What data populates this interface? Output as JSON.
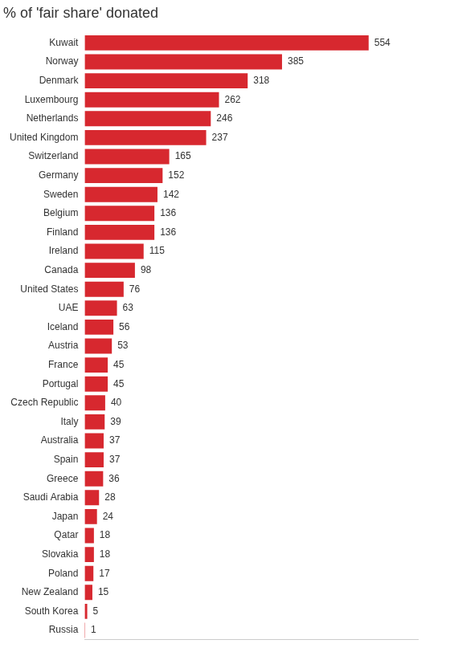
{
  "chart_data": {
    "type": "bar",
    "title": "% of 'fair share' donated",
    "orientation": "horizontal",
    "categories": [
      "Kuwait",
      "Norway",
      "Denmark",
      "Luxembourg",
      "Netherlands",
      "United Kingdom",
      "Switzerland",
      "Germany",
      "Sweden",
      "Belgium",
      "Finland",
      "Ireland",
      "Canada",
      "United States",
      "UAE",
      "Iceland",
      "Austria",
      "France",
      "Portugal",
      "Czech Republic",
      "Italy",
      "Australia",
      "Spain",
      "Greece",
      "Saudi Arabia",
      "Japan",
      "Qatar",
      "Slovakia",
      "Poland",
      "New Zealand",
      "South Korea",
      "Russia"
    ],
    "values": [
      554,
      385,
      318,
      262,
      246,
      237,
      165,
      152,
      142,
      136,
      136,
      115,
      98,
      76,
      63,
      56,
      53,
      45,
      45,
      40,
      39,
      37,
      37,
      36,
      28,
      24,
      18,
      18,
      17,
      15,
      5,
      1
    ],
    "color": "#d7282f",
    "xlim": [
      0,
      650
    ],
    "grid": false,
    "data_labels": true,
    "tick_labels": "y"
  }
}
